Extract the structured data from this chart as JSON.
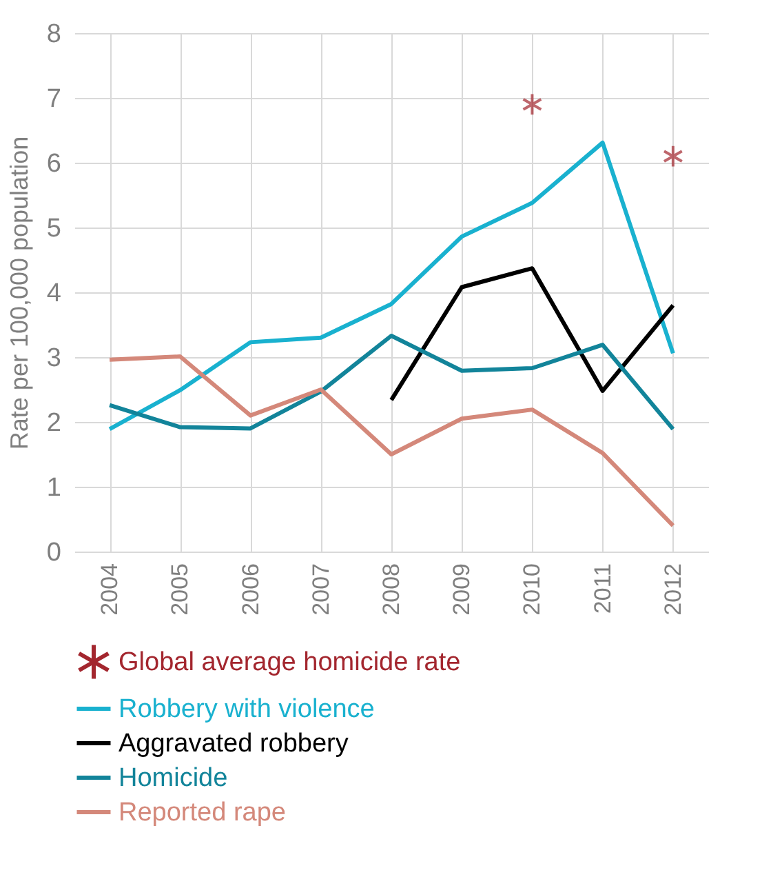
{
  "chart_data": {
    "type": "line",
    "ylabel": "Rate per 100,000 population",
    "categories": [
      "2004",
      "2005",
      "2006",
      "2007",
      "2008",
      "2009",
      "2010",
      "2011",
      "2012"
    ],
    "ylim": [
      0,
      8
    ],
    "yticks": [
      0,
      1,
      2,
      3,
      4,
      5,
      6,
      7,
      8
    ],
    "grid": true,
    "legend": "bottom",
    "line_style": "solid",
    "series": [
      {
        "name": "Global average homicide rate",
        "type": "scatter",
        "marker": "cross",
        "color": "#a3262e",
        "values": [
          null,
          null,
          null,
          null,
          null,
          null,
          6.9,
          null,
          6.1
        ]
      },
      {
        "name": "Robbery with violence",
        "color": "#19b1cf",
        "values": [
          1.89,
          2.49,
          3.23,
          3.3,
          3.82,
          4.86,
          5.38,
          6.31,
          3.06
        ]
      },
      {
        "name": "Aggravated robbery",
        "color": "#000000",
        "values": [
          null,
          null,
          null,
          null,
          2.34,
          4.08,
          4.37,
          2.48,
          3.8
        ]
      },
      {
        "name": "Homicide",
        "color": "#12849a",
        "values": [
          2.26,
          1.92,
          1.9,
          2.47,
          3.33,
          2.79,
          2.83,
          3.19,
          1.89
        ]
      },
      {
        "name": "Reported rape",
        "color": "#d4887a",
        "values": [
          2.96,
          3.01,
          2.1,
          2.5,
          1.5,
          2.05,
          2.19,
          1.52,
          0.4
        ]
      }
    ]
  }
}
